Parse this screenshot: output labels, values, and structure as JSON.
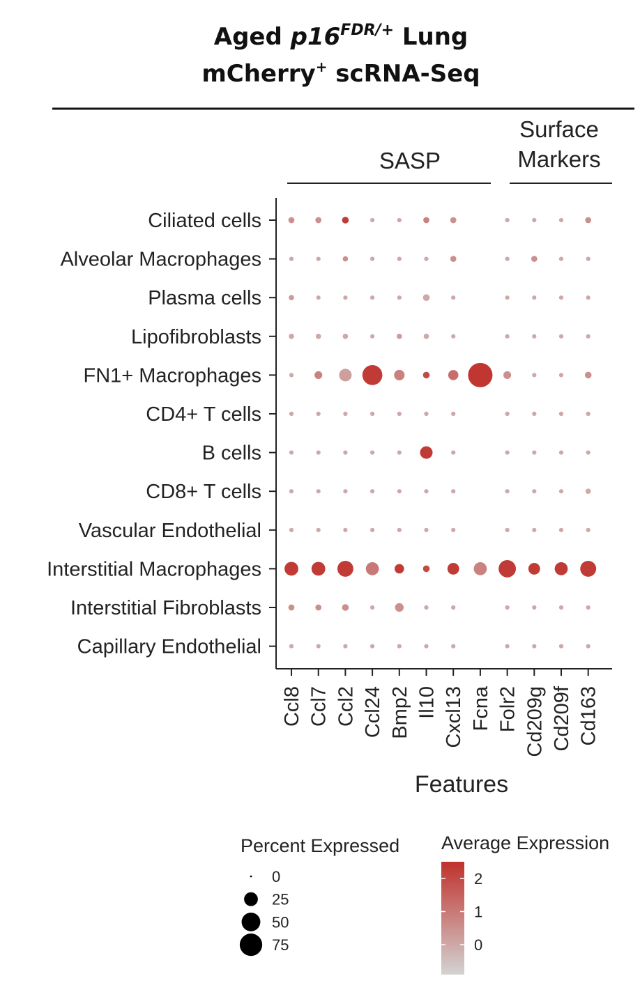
{
  "header": {
    "title_line1_prefix": "Aged ",
    "title_line1_gene": "p16",
    "title_line1_sup": "FDR/+",
    "title_line1_suffix": " Lung",
    "title_line2_prefix": "mCherry",
    "title_line2_sup": "+",
    "title_line2_suffix": " scRNA-Seq"
  },
  "chart_data": {
    "type": "dot",
    "xlabel": "Features",
    "ylabel": "",
    "groups": [
      {
        "name": "SASP",
        "features": [
          "Ccl8",
          "Ccl7",
          "Ccl2",
          "Ccl24",
          "Bmp2",
          "Il10",
          "Cxcl13",
          "Fcna"
        ]
      },
      {
        "name_lines": [
          "Surface",
          "Markers"
        ],
        "features": [
          "Folr2",
          "Cd209g",
          "Cd209f",
          "Cd163"
        ]
      }
    ],
    "features": [
      "Ccl8",
      "Ccl7",
      "Ccl2",
      "Ccl24",
      "Bmp2",
      "Il10",
      "Cxcl13",
      "Fcna",
      "Folr2",
      "Cd209g",
      "Cd209f",
      "Cd163"
    ],
    "cell_types": [
      "Ciliated cells",
      "Alveolar Macrophages",
      "Plasma cells",
      "Lipofibroblasts",
      "FN1+ Macrophages",
      "CD4+ T cells",
      "B cells",
      "CD8+ T cells",
      "Vascular Endothelial",
      "Interstitial Macrophages",
      "Interstitial Fibroblasts",
      "Capillary Endothelial"
    ],
    "percent_expressed": [
      [
        3,
        3,
        4,
        1,
        1,
        3,
        3,
        0,
        1,
        1,
        1,
        3
      ],
      [
        1,
        1,
        2,
        1,
        1,
        1,
        3,
        0,
        1,
        3,
        1,
        1
      ],
      [
        2,
        1,
        1,
        1,
        1,
        4,
        1,
        0,
        1,
        1,
        1,
        1
      ],
      [
        2,
        2,
        2,
        1,
        2,
        2,
        1,
        0,
        1,
        1,
        1,
        1
      ],
      [
        1,
        6,
        20,
        58,
        13,
        4,
        12,
        90,
        6,
        1,
        1,
        4
      ],
      [
        1,
        1,
        1,
        1,
        1,
        1,
        1,
        0,
        1,
        1,
        1,
        1
      ],
      [
        1,
        1,
        1,
        1,
        1,
        20,
        1,
        0,
        1,
        1,
        1,
        1
      ],
      [
        1,
        1,
        1,
        1,
        1,
        1,
        1,
        0,
        1,
        1,
        1,
        2
      ],
      [
        1,
        1,
        1,
        1,
        1,
        1,
        1,
        0,
        1,
        1,
        1,
        1
      ],
      [
        25,
        25,
        35,
        22,
        10,
        4,
        17,
        22,
        42,
        17,
        22,
        35
      ],
      [
        3,
        3,
        4,
        1,
        8,
        1,
        1,
        0,
        1,
        1,
        1,
        1
      ],
      [
        1,
        1,
        1,
        1,
        1,
        1,
        1,
        0,
        1,
        1,
        1,
        1
      ]
    ],
    "average_expression": [
      [
        0.5,
        0.5,
        2.3,
        0.0,
        0.0,
        0.8,
        0.5,
        0.0,
        0.0,
        0.0,
        0.0,
        0.5
      ],
      [
        0.0,
        0.0,
        0.5,
        0.0,
        0.0,
        0.0,
        0.5,
        0.0,
        0.0,
        0.5,
        0.0,
        0.0
      ],
      [
        0.3,
        0.0,
        0.0,
        0.0,
        0.0,
        0.0,
        0.0,
        0.0,
        0.0,
        0.0,
        0.0,
        0.0
      ],
      [
        0.0,
        0.0,
        0.0,
        0.0,
        0.3,
        0.0,
        0.0,
        0.0,
        0.0,
        0.0,
        0.0,
        0.0
      ],
      [
        0.0,
        0.8,
        0.2,
        2.3,
        0.8,
        2.0,
        1.2,
        2.4,
        0.5,
        0.0,
        0.0,
        0.5
      ],
      [
        0.0,
        0.0,
        0.0,
        0.0,
        0.0,
        0.0,
        0.0,
        0.0,
        0.0,
        0.0,
        0.0,
        0.0
      ],
      [
        0.0,
        0.0,
        0.0,
        0.0,
        0.0,
        2.3,
        0.0,
        0.0,
        0.0,
        0.0,
        0.0,
        0.0
      ],
      [
        0.0,
        0.0,
        0.0,
        0.0,
        0.0,
        0.0,
        0.0,
        0.0,
        0.0,
        0.0,
        0.0,
        0.0
      ],
      [
        0.0,
        0.0,
        0.0,
        0.0,
        0.0,
        0.0,
        0.0,
        0.0,
        0.0,
        0.0,
        0.0,
        0.0
      ],
      [
        2.3,
        2.3,
        2.3,
        1.0,
        2.3,
        2.0,
        2.3,
        0.8,
        2.3,
        2.3,
        2.3,
        2.3
      ],
      [
        0.5,
        0.5,
        0.5,
        0.0,
        0.5,
        0.0,
        0.0,
        0.0,
        0.0,
        0.0,
        0.0,
        0.0
      ],
      [
        0.0,
        0.0,
        0.0,
        0.0,
        0.0,
        0.0,
        0.0,
        0.0,
        0.0,
        0.0,
        0.0,
        0.0
      ]
    ],
    "size_legend": {
      "title": "Percent Expressed",
      "breaks": [
        0,
        25,
        50,
        75
      ],
      "labels": [
        "0",
        "25",
        "50",
        "75"
      ]
    },
    "color_legend": {
      "title": "Average Expression",
      "breaks": [
        2,
        1,
        0
      ],
      "labels": [
        "2",
        "1",
        "0"
      ],
      "range": [
        -0.9,
        2.5
      ],
      "low_color": "#d3d3d3",
      "high_color": "#c0312c"
    },
    "legend_position": "bottom"
  }
}
